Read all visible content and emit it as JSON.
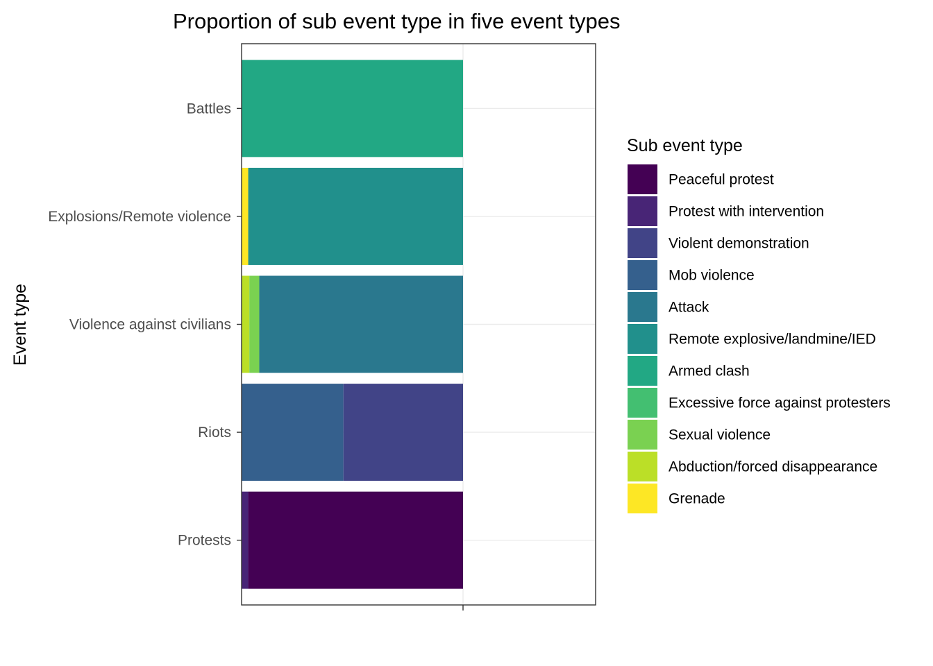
{
  "chart_data": {
    "type": "bar",
    "orientation": "horizontal",
    "stacked": true,
    "title": "Proportion of sub event type in five event types",
    "xlabel": "",
    "ylabel": "Event type",
    "xlim": [
      0,
      1.6
    ],
    "grid": true,
    "legend_position": "right",
    "legend_title": "Sub event type",
    "categories": [
      "Battles",
      "Explosions/Remote violence",
      "Violence against civilians",
      "Riots",
      "Protests"
    ],
    "series": [
      {
        "name": "Peaceful protest",
        "color": "#440154",
        "values": [
          0,
          0,
          0,
          0,
          0.97
        ]
      },
      {
        "name": "Protest with intervention",
        "color": "#482576",
        "values": [
          0,
          0,
          0,
          0,
          0.03
        ]
      },
      {
        "name": "Violent demonstration",
        "color": "#414487",
        "values": [
          0,
          0,
          0,
          0.54,
          0
        ]
      },
      {
        "name": "Mob violence",
        "color": "#35608D",
        "values": [
          0,
          0,
          0,
          0.46,
          0
        ]
      },
      {
        "name": "Attack",
        "color": "#2A788E",
        "values": [
          0,
          0,
          0.92,
          0,
          0
        ]
      },
      {
        "name": "Remote explosive/landmine/IED",
        "color": "#21908C",
        "values": [
          0,
          0.97,
          0,
          0,
          0
        ]
      },
      {
        "name": "Armed clash",
        "color": "#22A884",
        "values": [
          1.0,
          0,
          0,
          0,
          0
        ]
      },
      {
        "name": "Excessive force against protesters",
        "color": "#43BF71",
        "values": [
          0,
          0,
          0,
          0,
          0
        ]
      },
      {
        "name": "Sexual violence",
        "color": "#7AD151",
        "values": [
          0,
          0,
          0.045,
          0,
          0
        ]
      },
      {
        "name": "Abduction/forced disappearance",
        "color": "#BBDF27",
        "values": [
          0,
          0,
          0.035,
          0,
          0
        ]
      },
      {
        "name": "Grenade",
        "color": "#FDE725",
        "values": [
          0,
          0.03,
          0,
          0,
          0
        ]
      }
    ]
  }
}
